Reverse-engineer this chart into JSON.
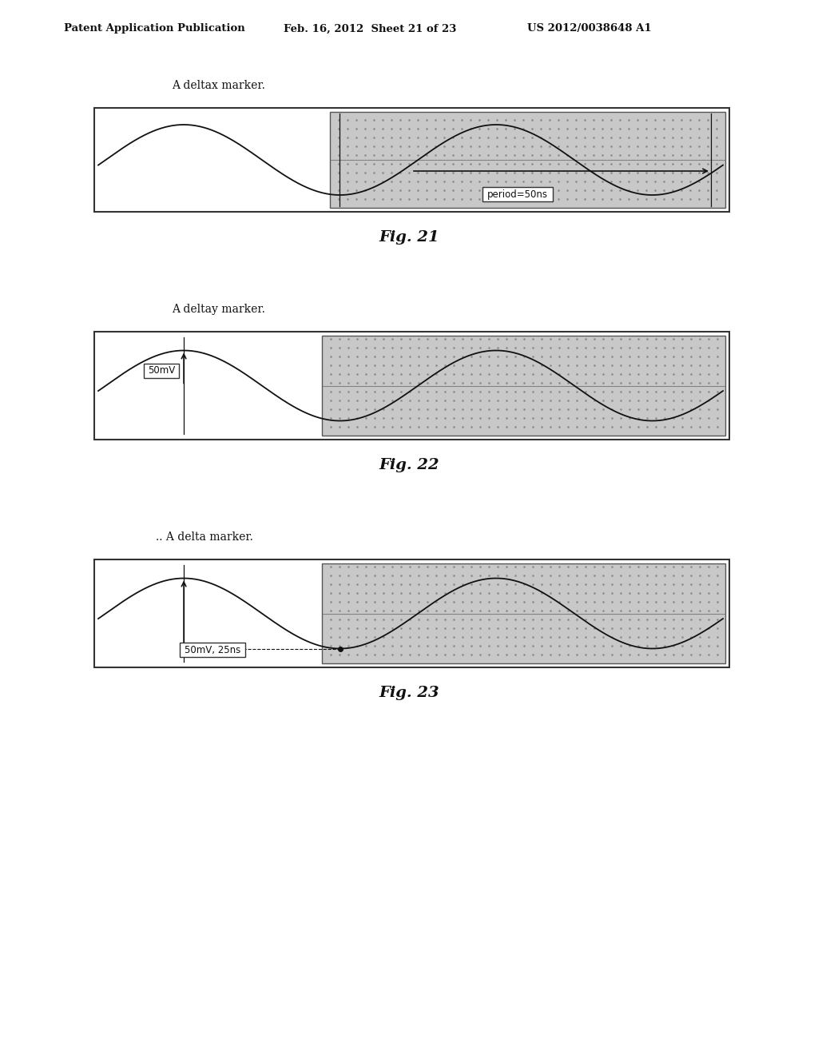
{
  "header_left": "Patent Application Publication",
  "header_mid": "Feb. 16, 2012  Sheet 21 of 23",
  "header_right": "US 2012/0038648 A1",
  "fig21_label": "A deltax marker.",
  "fig21_caption": "Fig. 21",
  "fig21_annotation": "period=50ns",
  "fig22_label": "A deltay marker.",
  "fig22_caption": "Fig. 22",
  "fig22_annotation": "50mV",
  "fig23_label": ".. A delta marker.",
  "fig23_caption": "Fig. 23",
  "fig23_annotation": "50mV, 25ns",
  "bg_color": "#ffffff",
  "dot_color": "#888888",
  "wave_color": "#111111",
  "outer_box_color": "#333333",
  "scope_bg": "#c8c8c8"
}
